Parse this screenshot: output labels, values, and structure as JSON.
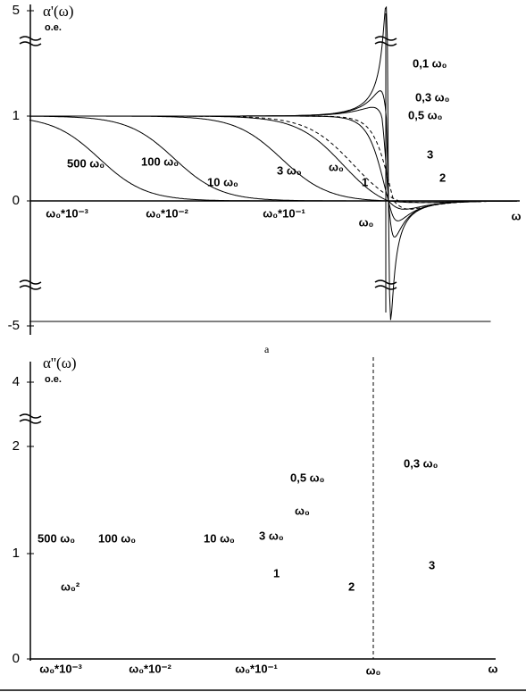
{
  "top": {
    "y_axis_label": "α'(ω)",
    "unit": "o.e.",
    "y_ticks": [
      5,
      1,
      0,
      -5
    ],
    "x_ticks": [
      "ω₀*10⁻³",
      "ω₀*10⁻²",
      "ω₀*10⁻¹",
      "ω₀",
      "ω"
    ],
    "curve_labels": [
      "0,1 ω₀",
      "0,3 ω₀",
      "0,5 ω₀",
      "ω₀",
      "3 ω₀",
      "10 ω₀",
      "100 ω₀",
      "500 ω₀",
      "1",
      "2",
      "3"
    ]
  },
  "caption": "a",
  "bottom": {
    "y_axis_label": "α''(ω)",
    "unit": "o.e.",
    "y_ticks": [
      4,
      2,
      1,
      0
    ],
    "x_ticks": [
      "ω₀*10⁻³",
      "ω₀*10⁻²",
      "ω₀*10⁻¹",
      "ω₀",
      "ω"
    ],
    "curve_labels": [
      "0,3 ω₀",
      "0,5 ω₀",
      "ω₀",
      "3 ω₀",
      "10 ω₀",
      "100 ω₀",
      "500 ω₀",
      "ω₀²",
      "1",
      "2",
      "3"
    ]
  }
}
